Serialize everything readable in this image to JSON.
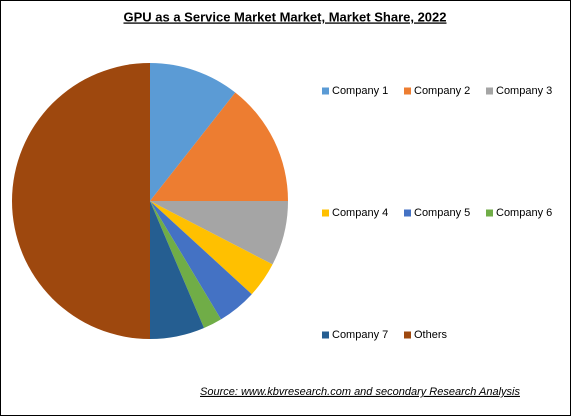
{
  "chart_data": {
    "type": "pie",
    "title": "GPU as a Service Market Market, Market Share, 2022",
    "categories": [
      "Company 1",
      "Company 2",
      "Company 3",
      "Company 4",
      "Company 5",
      "Company 6",
      "Company 7",
      "Others"
    ],
    "values": [
      10.6,
      14.4,
      7.6,
      4.2,
      4.6,
      2.2,
      6.4,
      50
    ],
    "colors": [
      "#5b9bd5",
      "#ed7d31",
      "#a5a5a5",
      "#ffc000",
      "#4472c4",
      "#70ad47",
      "#255e91",
      "#9e480e"
    ],
    "legend": "right",
    "source": "Source: www.kbvresearch.com and secondary Research Analysis"
  }
}
